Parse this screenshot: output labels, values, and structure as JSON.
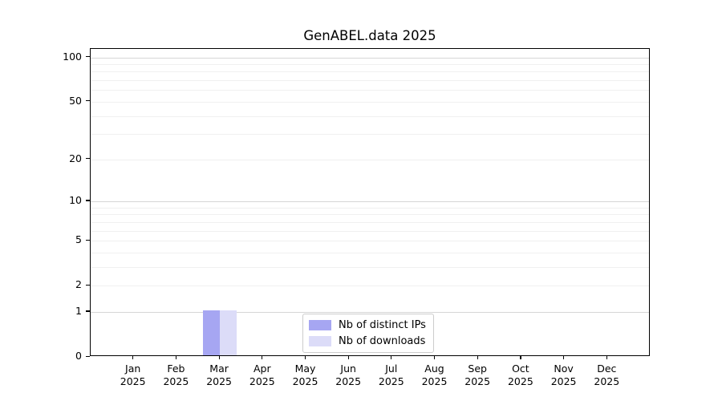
{
  "title": "GenABEL.data 2025",
  "chart_data": {
    "type": "bar",
    "title": "GenABEL.data 2025",
    "categories": [
      "Jan 2025",
      "Feb 2025",
      "Mar 2025",
      "Apr 2025",
      "May 2025",
      "Jun 2025",
      "Jul 2025",
      "Aug 2025",
      "Sep 2025",
      "Oct 2025",
      "Nov 2025",
      "Dec 2025"
    ],
    "series": [
      {
        "name": "Nb of distinct IPs",
        "color": "#a6a6f2",
        "values": [
          0,
          0,
          1,
          0,
          0,
          0,
          0,
          0,
          0,
          0,
          0,
          0
        ]
      },
      {
        "name": "Nb of downloads",
        "color": "#dcdcf8",
        "values": [
          0,
          0,
          1,
          0,
          0,
          0,
          0,
          0,
          0,
          0,
          0,
          0
        ]
      }
    ],
    "xlabel": "",
    "ylabel": "",
    "y_scale": "log1p",
    "ylim": [
      0,
      114
    ],
    "y_ticks": [
      0,
      1,
      2,
      5,
      10,
      20,
      50,
      100
    ],
    "gridlines_major": [
      1,
      10,
      100
    ],
    "gridlines_minor": [
      2,
      3,
      4,
      5,
      6,
      7,
      8,
      9,
      20,
      30,
      40,
      50,
      60,
      70,
      80,
      90
    ],
    "legend_position": "bottom-center",
    "grid": "on"
  }
}
